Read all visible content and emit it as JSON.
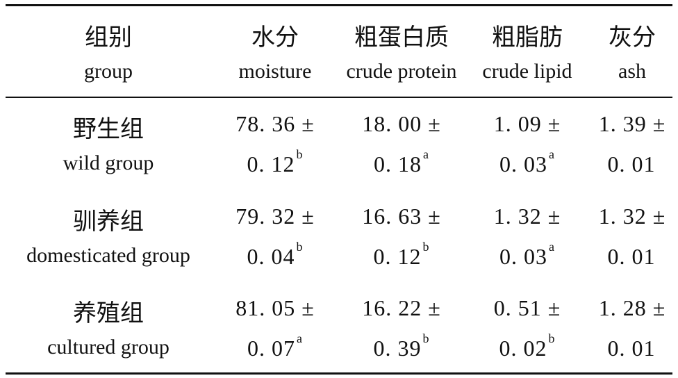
{
  "table": {
    "headers": [
      {
        "cn": "组别",
        "en": "group"
      },
      {
        "cn": "水分",
        "en": "moisture"
      },
      {
        "cn": "粗蛋白质",
        "en": "crude protein"
      },
      {
        "cn": "粗脂肪",
        "en": "crude lipid"
      },
      {
        "cn": "灰分",
        "en": "ash"
      }
    ],
    "rows": [
      {
        "group_cn": "野生组",
        "group_en": "wild group",
        "values": [
          {
            "line1": "78. 36 ±",
            "line2": "0. 12",
            "sup": "b"
          },
          {
            "line1": "18. 00 ±",
            "line2": "0. 18",
            "sup": "a"
          },
          {
            "line1": "1. 09 ±",
            "line2": "0. 03",
            "sup": "a"
          },
          {
            "line1": "1. 39 ±",
            "line2": "0. 01",
            "sup": ""
          }
        ]
      },
      {
        "group_cn": "驯养组",
        "group_en": "domesticated group",
        "values": [
          {
            "line1": "79. 32 ±",
            "line2": "0. 04",
            "sup": "b"
          },
          {
            "line1": "16. 63 ±",
            "line2": "0. 12",
            "sup": "b"
          },
          {
            "line1": "1. 32 ±",
            "line2": "0. 03",
            "sup": "a"
          },
          {
            "line1": "1. 32 ±",
            "line2": "0. 01",
            "sup": ""
          }
        ]
      },
      {
        "group_cn": "养殖组",
        "group_en": "cultured group",
        "values": [
          {
            "line1": "81. 05 ±",
            "line2": "0. 07",
            "sup": "a"
          },
          {
            "line1": "16. 22 ±",
            "line2": "0. 39",
            "sup": "b"
          },
          {
            "line1": "0. 51 ±",
            "line2": "0. 02",
            "sup": "b"
          },
          {
            "line1": "1. 28 ±",
            "line2": "0. 01",
            "sup": ""
          }
        ]
      }
    ]
  }
}
